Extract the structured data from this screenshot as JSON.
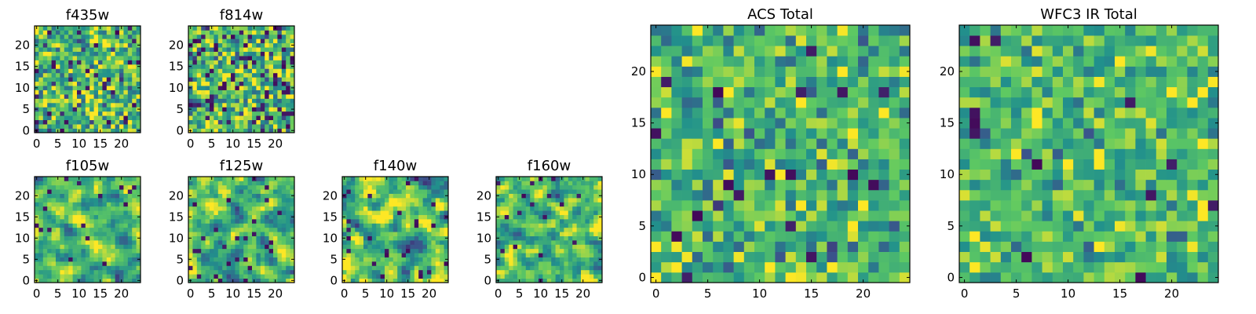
{
  "figure": {
    "colormap": [
      "#440154",
      "#3b528b",
      "#21918c",
      "#5ec962",
      "#fde725"
    ],
    "background": "#ffffff"
  },
  "chart_data": [
    {
      "type": "heatmap",
      "title": "f435w",
      "xticks": [
        "0",
        "5",
        "10",
        "15",
        "20"
      ],
      "yticks": [
        "0",
        "5",
        "10",
        "15",
        "20"
      ],
      "grid_size": [
        25,
        25
      ],
      "xlim": [
        -0.5,
        24.5
      ],
      "ylim": [
        -0.5,
        24.5
      ],
      "seed": 11,
      "smooth": 0,
      "mean": 0.66,
      "spread": 0.22,
      "dark_fraction": 0.05,
      "grid": false
    },
    {
      "type": "heatmap",
      "title": "f814w",
      "xticks": [
        "0",
        "5",
        "10",
        "15",
        "20"
      ],
      "yticks": [
        "0",
        "5",
        "10",
        "15",
        "20"
      ],
      "grid_size": [
        25,
        25
      ],
      "xlim": [
        -0.5,
        24.5
      ],
      "ylim": [
        -0.5,
        24.5
      ],
      "seed": 23,
      "smooth": 0,
      "mean": 0.66,
      "spread": 0.24,
      "dark_fraction": 0.06,
      "grid": false
    },
    {
      "type": "heatmap",
      "title": "f105w",
      "xticks": [
        "0",
        "5",
        "10",
        "15",
        "20"
      ],
      "yticks": [
        "0",
        "5",
        "10",
        "15",
        "20"
      ],
      "grid_size": [
        25,
        25
      ],
      "xlim": [
        -0.5,
        24.5
      ],
      "ylim": [
        -0.5,
        24.5
      ],
      "seed": 37,
      "smooth": 1,
      "mean": 0.7,
      "spread": 0.2,
      "dark_fraction": 0.03,
      "grid": false
    },
    {
      "type": "heatmap",
      "title": "f125w",
      "xticks": [
        "0",
        "5",
        "10",
        "15",
        "20"
      ],
      "yticks": [
        "0",
        "5",
        "10",
        "15",
        "20"
      ],
      "grid_size": [
        25,
        25
      ],
      "xlim": [
        -0.5,
        24.5
      ],
      "ylim": [
        -0.5,
        24.5
      ],
      "seed": 41,
      "smooth": 1,
      "mean": 0.68,
      "spread": 0.22,
      "dark_fraction": 0.04,
      "grid": false
    },
    {
      "type": "heatmap",
      "title": "f140w",
      "xticks": [
        "0",
        "5",
        "10",
        "15",
        "20"
      ],
      "yticks": [
        "0",
        "5",
        "10",
        "15",
        "20"
      ],
      "grid_size": [
        25,
        25
      ],
      "xlim": [
        -0.5,
        24.5
      ],
      "ylim": [
        -0.5,
        24.5
      ],
      "seed": 53,
      "smooth": 1,
      "mean": 0.68,
      "spread": 0.24,
      "dark_fraction": 0.04,
      "grid": false
    },
    {
      "type": "heatmap",
      "title": "f160w",
      "xticks": [
        "0",
        "5",
        "10",
        "15",
        "20"
      ],
      "yticks": [
        "0",
        "5",
        "10",
        "15",
        "20"
      ],
      "grid_size": [
        25,
        25
      ],
      "xlim": [
        -0.5,
        24.5
      ],
      "ylim": [
        -0.5,
        24.5
      ],
      "seed": 67,
      "smooth": 1,
      "mean": 0.68,
      "spread": 0.22,
      "dark_fraction": 0.03,
      "grid": false
    },
    {
      "type": "heatmap",
      "title": "ACS Total",
      "xticks": [
        "0",
        "5",
        "10",
        "15",
        "20"
      ],
      "yticks": [
        "0",
        "5",
        "10",
        "15",
        "20"
      ],
      "grid_size": [
        25,
        25
      ],
      "xlim": [
        -0.5,
        24.5
      ],
      "ylim": [
        -0.5,
        24.5
      ],
      "seed": 79,
      "smooth": 0,
      "mean": 0.66,
      "spread": 0.18,
      "dark_fraction": 0.03,
      "grid": false
    },
    {
      "type": "heatmap",
      "title": "WFC3 IR Total",
      "xticks": [
        "0",
        "5",
        "10",
        "15",
        "20"
      ],
      "yticks": [
        "0",
        "5",
        "10",
        "15",
        "20"
      ],
      "grid_size": [
        25,
        25
      ],
      "xlim": [
        -0.5,
        24.5
      ],
      "ylim": [
        -0.5,
        24.5
      ],
      "seed": 97,
      "smooth": 0,
      "mean": 0.67,
      "spread": 0.16,
      "dark_fraction": 0.025,
      "grid": false
    }
  ]
}
